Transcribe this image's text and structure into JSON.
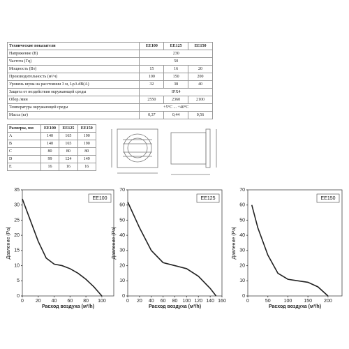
{
  "specs_table": {
    "header": [
      "Технические показатели",
      "EE100",
      "EE125",
      "EE150"
    ],
    "rows": [
      [
        "Напряжение (В)",
        "230"
      ],
      [
        "Частота (Гц)",
        "50"
      ],
      [
        "Мощность (Вт)",
        "15",
        "16",
        "20"
      ],
      [
        "Производительность (м³/ч)",
        "100",
        "150",
        "200"
      ],
      [
        "Уровень шума на расстоянии 3 м, LpA dB(A)",
        "32",
        "38",
        "40"
      ],
      [
        "Защита от воздействия окружающей среды",
        "IPX4"
      ],
      [
        "Обор./мин",
        "2550",
        "2360",
        "2100"
      ],
      [
        "Температура окружающей среды",
        "+5°C ... +40°C"
      ],
      [
        "Масса (кг)",
        "0,37",
        "0,44",
        "0,56"
      ]
    ]
  },
  "dimensions_table": {
    "header": [
      "Размеры, мм",
      "EE100",
      "EE125",
      "EE150"
    ],
    "rows": [
      [
        "A",
        "140",
        "165",
        "190"
      ],
      [
        "B",
        "140",
        "165",
        "190"
      ],
      [
        "C",
        "80",
        "80",
        "80"
      ],
      [
        "D",
        "99",
        "124",
        "149"
      ],
      [
        "E",
        "16",
        "16",
        "16"
      ]
    ]
  },
  "chart_data": [
    {
      "type": "line",
      "series": [
        {
          "name": "EE100",
          "color": "#222222",
          "values": [
            32,
            25,
            18,
            12.5,
            10.5,
            10,
            9,
            7.5,
            5.5,
            3,
            0
          ]
        }
      ],
      "x": [
        0,
        10,
        20,
        30,
        40,
        50,
        60,
        70,
        80,
        90,
        100
      ],
      "x_label": "Расход воздуха (м³/h)",
      "y_label": "Давление (Pa)",
      "xlim": [
        0,
        115
      ],
      "xticks": [
        0,
        20,
        40,
        60,
        80,
        100
      ],
      "ylim": [
        0,
        35
      ],
      "yticks": [
        0,
        5,
        10,
        15,
        20,
        25,
        30,
        35
      ],
      "grid": false,
      "legend": "upper right"
    },
    {
      "type": "line",
      "series": [
        {
          "name": "EE125",
          "color": "#222222",
          "values": [
            62,
            45,
            30,
            22,
            20,
            18,
            13,
            5,
            0
          ]
        }
      ],
      "x": [
        0,
        20,
        40,
        60,
        80,
        100,
        120,
        140,
        150
      ],
      "x_label": "Расход воздуха (м³/h)",
      "y_label": "Давление (Pa)",
      "xlim": [
        0,
        160
      ],
      "xticks": [
        0,
        20,
        40,
        60,
        80,
        100,
        120,
        140,
        160
      ],
      "ylim": [
        0,
        70
      ],
      "yticks": [
        0,
        10,
        20,
        30,
        40,
        50,
        60,
        70
      ],
      "grid": false,
      "legend": "upper right"
    },
    {
      "type": "line",
      "series": [
        {
          "name": "EE150",
          "color": "#222222",
          "values": [
            60,
            45,
            27,
            15,
            11,
            10,
            9,
            6,
            0
          ]
        }
      ],
      "x": [
        10,
        25,
        50,
        75,
        100,
        125,
        150,
        175,
        200
      ],
      "x_label": "Расход воздуха (м³/h)",
      "y_label": "Давление (Pa)",
      "xlim": [
        0,
        235
      ],
      "xticks": [
        0,
        50,
        100,
        150,
        200
      ],
      "ylim": [
        0,
        70
      ],
      "yticks": [
        0,
        10,
        20,
        30,
        40,
        50,
        60,
        70
      ],
      "grid": false,
      "legend": "upper right"
    }
  ]
}
